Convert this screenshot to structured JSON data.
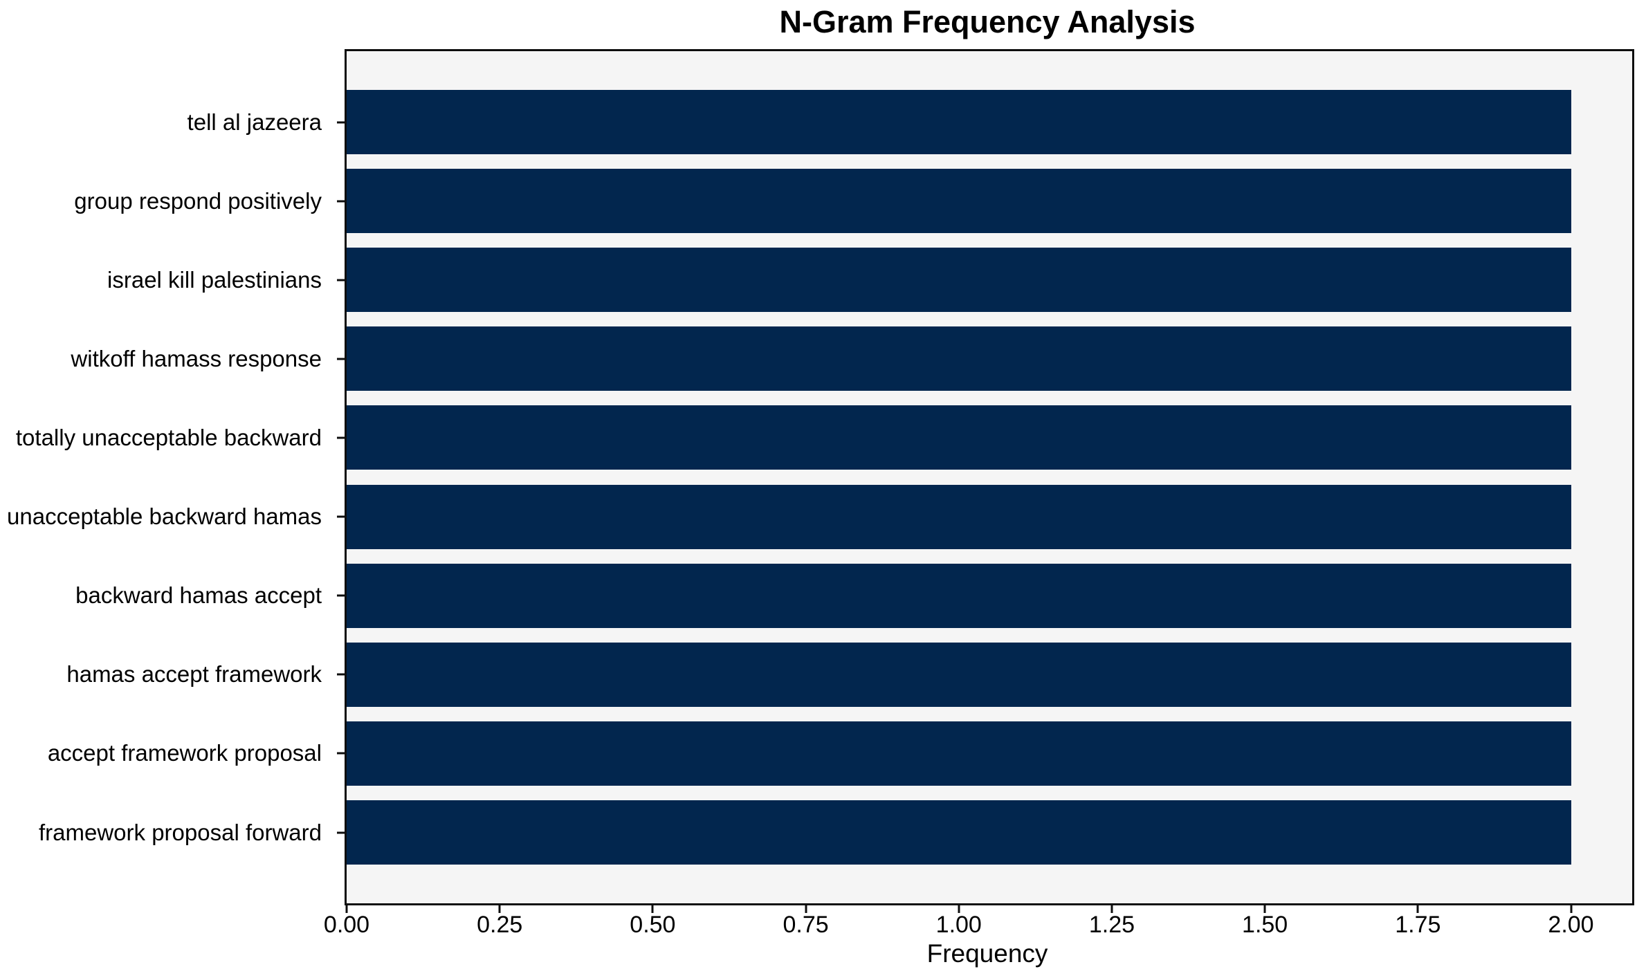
{
  "chart_data": {
    "type": "bar",
    "orientation": "horizontal",
    "title": "N-Gram Frequency Analysis",
    "xlabel": "Frequency",
    "ylabel": "",
    "categories": [
      "tell al jazeera",
      "group respond positively",
      "israel kill palestinians",
      "witkoff hamass response",
      "totally unacceptable backward",
      "unacceptable backward hamas",
      "backward hamas accept",
      "hamas accept framework",
      "accept framework proposal",
      "framework proposal forward"
    ],
    "values": [
      2,
      2,
      2,
      2,
      2,
      2,
      2,
      2,
      2,
      2
    ],
    "xlim": [
      0,
      2.1
    ],
    "xticks": [
      {
        "value": 0.0,
        "label": "0.00"
      },
      {
        "value": 0.25,
        "label": "0.25"
      },
      {
        "value": 0.5,
        "label": "0.50"
      },
      {
        "value": 0.75,
        "label": "0.75"
      },
      {
        "value": 1.0,
        "label": "1.00"
      },
      {
        "value": 1.25,
        "label": "1.25"
      },
      {
        "value": 1.5,
        "label": "1.50"
      },
      {
        "value": 1.75,
        "label": "1.75"
      },
      {
        "value": 2.0,
        "label": "2.00"
      }
    ],
    "grid": false,
    "legend": null,
    "colors": {
      "bar": "#02264e",
      "plot_background": "#f5f5f5",
      "figure_background": "#ffffff",
      "spine": "#0e0e0e",
      "text": "#000000"
    }
  }
}
